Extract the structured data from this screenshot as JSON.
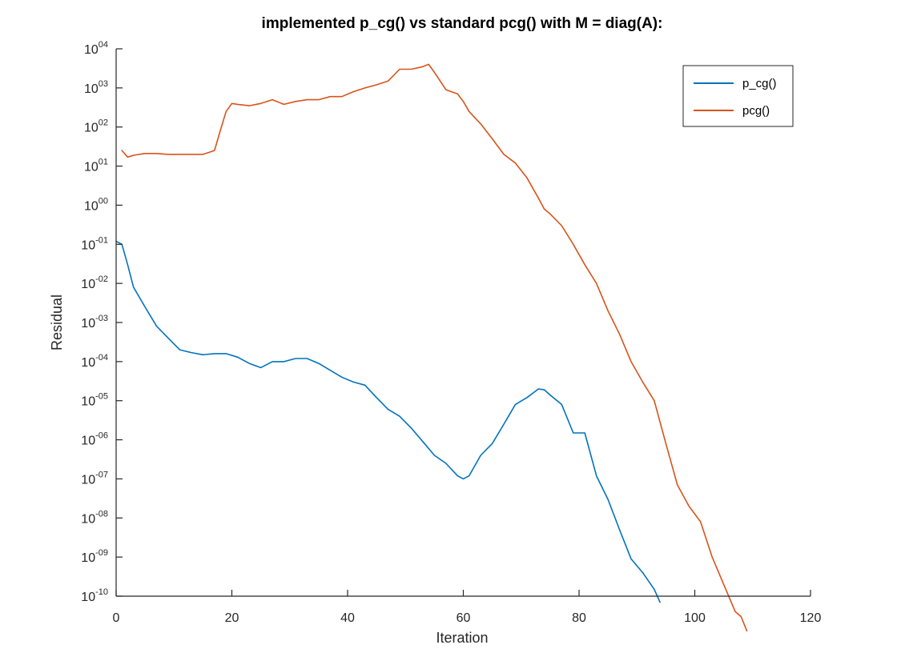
{
  "chart_data": {
    "type": "line",
    "title": "implemented p_cg() vs standard pcg() with M = diag(A):",
    "xlabel": "Iteration",
    "ylabel": "Residual",
    "xlim": [
      0,
      120
    ],
    "ylim_exponents": [
      -10,
      4
    ],
    "yscale": "log",
    "grid": false,
    "legend_position": "top-right",
    "x_ticks": [
      "0",
      "20",
      "40",
      "60",
      "80",
      "100",
      "120"
    ],
    "y_ticks": [
      {
        "base": "10",
        "exp": "04"
      },
      {
        "base": "10",
        "exp": "03"
      },
      {
        "base": "10",
        "exp": "02"
      },
      {
        "base": "10",
        "exp": "01"
      },
      {
        "base": "10",
        "exp": "00"
      },
      {
        "base": "10",
        "exp": "-01"
      },
      {
        "base": "10",
        "exp": "-02"
      },
      {
        "base": "10",
        "exp": "-03"
      },
      {
        "base": "10",
        "exp": "-04"
      },
      {
        "base": "10",
        "exp": "-05"
      },
      {
        "base": "10",
        "exp": "-06"
      },
      {
        "base": "10",
        "exp": "-07"
      },
      {
        "base": "10",
        "exp": "-08"
      },
      {
        "base": "10",
        "exp": "-09"
      },
      {
        "base": "10",
        "exp": "-10"
      }
    ],
    "series": [
      {
        "name": "p_cg()",
        "color": "#0072BD",
        "x": [
          0,
          1,
          2,
          3,
          5,
          7,
          9,
          11,
          13,
          15,
          17,
          19,
          21,
          23,
          25,
          27,
          29,
          31,
          33,
          35,
          37,
          39,
          41,
          43,
          45,
          47,
          49,
          51,
          53,
          55,
          57,
          59,
          60,
          61,
          63,
          65,
          67,
          69,
          71,
          73,
          74,
          75,
          77,
          79,
          81,
          83,
          85,
          87,
          89,
          91,
          93,
          94
        ],
        "y": [
          0.12,
          0.1,
          0.03,
          0.008,
          0.0025,
          0.0008,
          0.0004,
          0.0002,
          0.00017,
          0.00015,
          0.00016,
          0.00016,
          0.00013,
          9e-05,
          7e-05,
          0.0001,
          0.0001,
          0.00012,
          0.00012,
          9e-05,
          6e-05,
          4e-05,
          3e-05,
          2.5e-05,
          1.2e-05,
          6e-06,
          4e-06,
          2e-06,
          9e-07,
          4e-07,
          2.5e-07,
          1.2e-07,
          1e-07,
          1.2e-07,
          4e-07,
          8e-07,
          2.5e-06,
          8e-06,
          1.2e-05,
          2e-05,
          1.9e-05,
          1.4e-05,
          8e-06,
          1.5e-06,
          1.5e-06,
          1.2e-07,
          3e-08,
          5e-09,
          9e-10,
          4e-10,
          1.5e-10,
          7e-11
        ]
      },
      {
        "name": "pcg()",
        "color": "#D95319",
        "x": [
          1,
          2,
          3,
          5,
          7,
          9,
          11,
          13,
          15,
          17,
          18,
          19,
          20,
          21,
          23,
          25,
          27,
          29,
          31,
          33,
          35,
          37,
          39,
          41,
          43,
          45,
          47,
          49,
          51,
          53,
          54,
          55,
          57,
          59,
          60,
          61,
          63,
          65,
          67,
          69,
          71,
          73,
          74,
          75,
          77,
          79,
          81,
          83,
          85,
          87,
          89,
          91,
          93,
          95,
          97,
          99,
          101,
          103,
          105,
          107,
          108,
          109
        ],
        "y": [
          25,
          17,
          19,
          21,
          21,
          20,
          20,
          20,
          20,
          25,
          80,
          250,
          400,
          380,
          350,
          400,
          500,
          380,
          450,
          500,
          500,
          600,
          600,
          800,
          1000,
          1200,
          1500,
          3000,
          3000,
          3500,
          4000,
          2500,
          900,
          700,
          450,
          250,
          120,
          50,
          20,
          12,
          5,
          1.5,
          0.8,
          0.6,
          0.3,
          0.1,
          0.03,
          0.01,
          0.002,
          0.0005,
          0.0001,
          3e-05,
          1e-05,
          8e-07,
          7e-08,
          2e-08,
          8e-09,
          1e-09,
          2e-10,
          4e-11,
          3e-11,
          1.3e-11
        ]
      }
    ]
  }
}
